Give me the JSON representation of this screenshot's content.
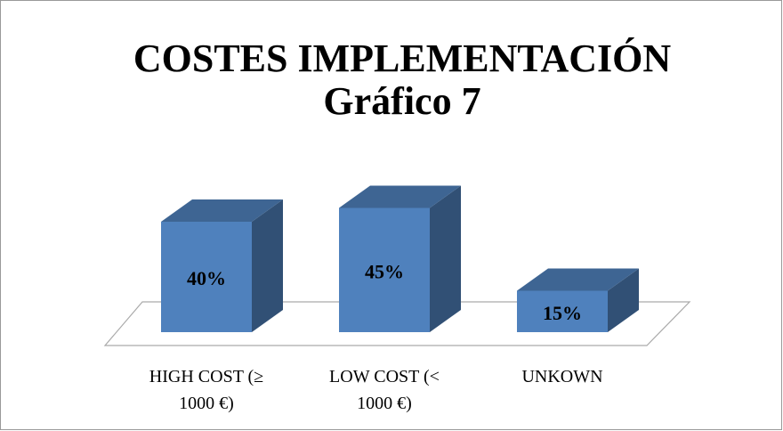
{
  "chart_data": {
    "type": "bar3d",
    "title": "COSTES IMPLEMENTACIÓN",
    "subtitle": "Gráfico 7",
    "categories": [
      "HIGH COST (≥ 1000 €)",
      "LOW COST (< 1000 €)",
      "UNKOWN"
    ],
    "values": [
      40,
      45,
      15
    ],
    "value_labels": [
      "40%",
      "45%",
      "15%"
    ],
    "color": "#4f81bd"
  }
}
